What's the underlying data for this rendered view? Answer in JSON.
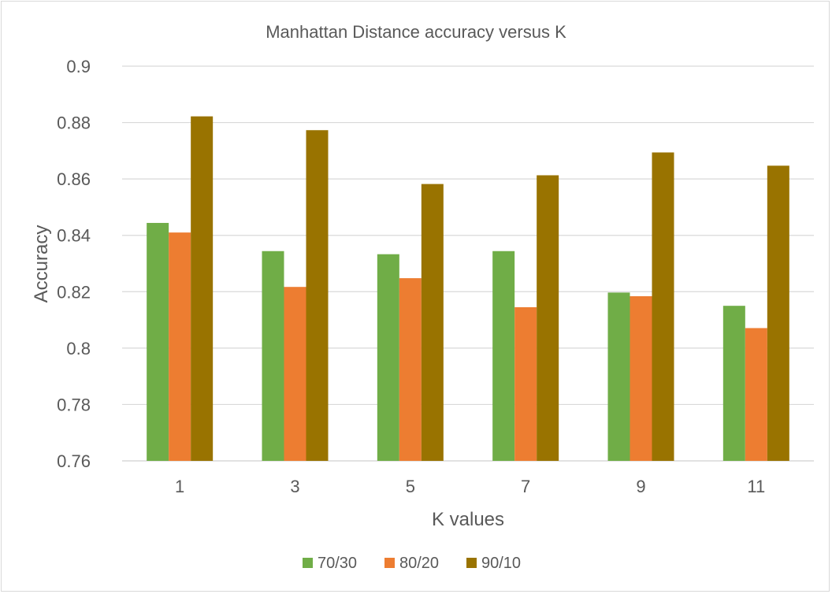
{
  "chart_data": {
    "type": "bar",
    "title": "Manhattan Distance accuracy versus K",
    "xlabel": "K values",
    "ylabel": "Accuracy",
    "categories": [
      "1",
      "3",
      "5",
      "7",
      "9",
      "11"
    ],
    "ylim": [
      0.76,
      0.9
    ],
    "yticks": [
      "0.76",
      "0.78",
      "0.8",
      "0.82",
      "0.84",
      "0.86",
      "0.88",
      "0.9"
    ],
    "grid": true,
    "legend_position": "bottom",
    "series": [
      {
        "name": "70/30",
        "color": "#70AD47",
        "values": [
          0.8444,
          0.8344,
          0.8333,
          0.8344,
          0.8197,
          0.815
        ]
      },
      {
        "name": "80/20",
        "color": "#ED7D31",
        "values": [
          0.841,
          0.8217,
          0.8248,
          0.8145,
          0.8184,
          0.8071
        ]
      },
      {
        "name": "90/10",
        "color": "#997300",
        "values": [
          0.8822,
          0.8773,
          0.8582,
          0.8613,
          0.8694,
          0.8647
        ]
      }
    ]
  }
}
